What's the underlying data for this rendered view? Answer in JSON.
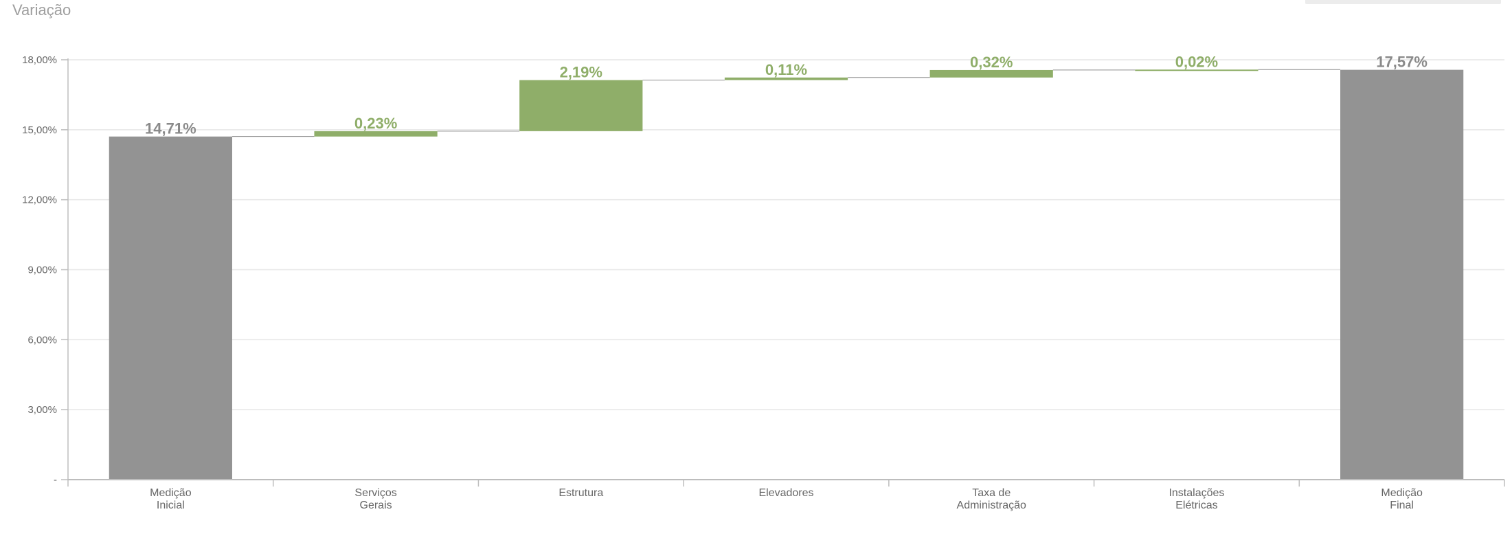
{
  "header": {
    "title": "Variação"
  },
  "colors": {
    "total": "#939393",
    "increase": "#8fae69",
    "increase_label": "#8fae69",
    "total_label": "#8a8a8a",
    "grid": "#e6e6e6",
    "axis": "#bdbdbd",
    "connector": "#8c8c8c"
  },
  "chart_data": {
    "type": "bar",
    "subtype": "waterfall",
    "title": "Variação",
    "categories": [
      [
        "Medição",
        "Inicial"
      ],
      [
        "Serviços",
        "Gerais"
      ],
      [
        "Estrutura"
      ],
      [
        "Elevadores"
      ],
      [
        "Taxa de",
        "Administração"
      ],
      [
        "Instalações",
        "Elétricas"
      ],
      [
        "Medição",
        "Final"
      ]
    ],
    "values": [
      14.71,
      0.23,
      2.19,
      0.11,
      0.32,
      0.02,
      17.57
    ],
    "kinds": [
      "total",
      "increase",
      "increase",
      "increase",
      "increase",
      "increase",
      "total"
    ],
    "data_labels": [
      "14,71%",
      "0,23%",
      "2,19%",
      "0,11%",
      "0,32%",
      "0,02%",
      "17,57%"
    ],
    "ylim": [
      0,
      18
    ],
    "yticks": [
      0,
      3,
      6,
      9,
      12,
      15,
      18
    ],
    "ytick_labels": [
      "-",
      "3,00%",
      "6,00%",
      "9,00%",
      "12,00%",
      "15,00%",
      "18,00%"
    ],
    "grid": true,
    "legend": "none"
  }
}
